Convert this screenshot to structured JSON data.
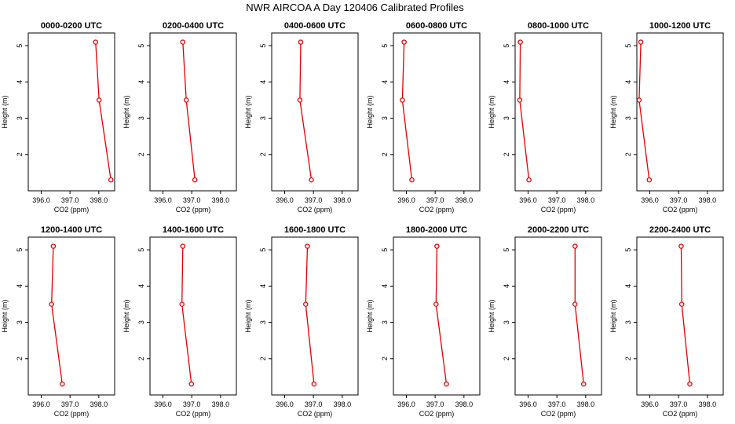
{
  "figure": {
    "title": "NWR AIRCOA A  Day 120406  Calibrated Profiles",
    "line_color": "#e00000",
    "marker_fill": "#ffffff"
  },
  "chart_data": [
    {
      "type": "line",
      "title": "0000-0200 UTC",
      "xlabel": "CO2 (ppm)",
      "ylabel": "Height (m)",
      "xlim": [
        395.55,
        398.55
      ],
      "ylim": [
        1.0,
        5.35
      ],
      "xticks": [
        "396.0",
        "397.0",
        "398.0"
      ],
      "yticks": [
        "2",
        "3",
        "4",
        "5"
      ],
      "x": [
        397.89,
        398.01,
        398.42
      ],
      "y": [
        5.1,
        3.5,
        1.3
      ]
    },
    {
      "type": "line",
      "title": "0200-0400 UTC",
      "xlabel": "CO2 (ppm)",
      "ylabel": "Height (m)",
      "xlim": [
        395.55,
        398.55
      ],
      "ylim": [
        1.0,
        5.35
      ],
      "xticks": [
        "396.0",
        "397.0",
        "398.0"
      ],
      "yticks": [
        "2",
        "3",
        "4",
        "5"
      ],
      "x": [
        396.69,
        396.81,
        397.11
      ],
      "y": [
        5.1,
        3.5,
        1.3
      ]
    },
    {
      "type": "line",
      "title": "0400-0600 UTC",
      "xlabel": "CO2 (ppm)",
      "ylabel": "Height (m)",
      "xlim": [
        395.55,
        398.55
      ],
      "ylim": [
        1.0,
        5.35
      ],
      "xticks": [
        "396.0",
        "397.0",
        "398.0"
      ],
      "yticks": [
        "2",
        "3",
        "4",
        "5"
      ],
      "x": [
        396.56,
        396.53,
        396.93
      ],
      "y": [
        5.1,
        3.5,
        1.3
      ]
    },
    {
      "type": "line",
      "title": "0600-0800 UTC",
      "xlabel": "CO2 (ppm)",
      "ylabel": "Height (m)",
      "xlim": [
        395.55,
        398.55
      ],
      "ylim": [
        1.0,
        5.35
      ],
      "xticks": [
        "396.0",
        "397.0",
        "398.0"
      ],
      "yticks": [
        "2",
        "3",
        "4",
        "5"
      ],
      "x": [
        395.92,
        395.86,
        396.19
      ],
      "y": [
        5.1,
        3.5,
        1.3
      ]
    },
    {
      "type": "line",
      "title": "0800-1000 UTC",
      "xlabel": "CO2 (ppm)",
      "ylabel": "Height (m)",
      "xlim": [
        395.55,
        398.55
      ],
      "ylim": [
        1.0,
        5.35
      ],
      "xticks": [
        "396.0",
        "397.0",
        "398.0"
      ],
      "yticks": [
        "2",
        "3",
        "4",
        "5"
      ],
      "x": [
        395.73,
        395.71,
        396.03
      ],
      "y": [
        5.1,
        3.5,
        1.3
      ]
    },
    {
      "type": "line",
      "title": "1000-1200 UTC",
      "xlabel": "CO2 (ppm)",
      "ylabel": "Height (m)",
      "xlim": [
        395.55,
        398.55
      ],
      "ylim": [
        1.0,
        5.35
      ],
      "xticks": [
        "396.0",
        "397.0",
        "398.0"
      ],
      "yticks": [
        "2",
        "3",
        "4",
        "5"
      ],
      "x": [
        395.69,
        395.63,
        395.98
      ],
      "y": [
        5.1,
        3.5,
        1.3
      ]
    },
    {
      "type": "line",
      "title": "1200-1400 UTC",
      "xlabel": "CO2 (ppm)",
      "ylabel": "Height (m)",
      "xlim": [
        395.55,
        398.55
      ],
      "ylim": [
        1.0,
        5.35
      ],
      "xticks": [
        "396.0",
        "397.0",
        "398.0"
      ],
      "yticks": [
        "2",
        "3",
        "4",
        "5"
      ],
      "x": [
        396.42,
        396.36,
        396.73
      ],
      "y": [
        5.1,
        3.5,
        1.3
      ]
    },
    {
      "type": "line",
      "title": "1400-1600 UTC",
      "xlabel": "CO2 (ppm)",
      "ylabel": "Height (m)",
      "xlim": [
        395.55,
        398.55
      ],
      "ylim": [
        1.0,
        5.35
      ],
      "xticks": [
        "396.0",
        "397.0",
        "398.0"
      ],
      "yticks": [
        "2",
        "3",
        "4",
        "5"
      ],
      "x": [
        396.69,
        396.66,
        396.99
      ],
      "y": [
        5.1,
        3.5,
        1.3
      ]
    },
    {
      "type": "line",
      "title": "1600-1800 UTC",
      "xlabel": "CO2 (ppm)",
      "ylabel": "Height (m)",
      "xlim": [
        395.55,
        398.55
      ],
      "ylim": [
        1.0,
        5.35
      ],
      "xticks": [
        "396.0",
        "397.0",
        "398.0"
      ],
      "yticks": [
        "2",
        "3",
        "4",
        "5"
      ],
      "x": [
        396.79,
        396.73,
        397.02
      ],
      "y": [
        5.1,
        3.5,
        1.3
      ]
    },
    {
      "type": "line",
      "title": "1800-2000 UTC",
      "xlabel": "CO2 (ppm)",
      "ylabel": "Height (m)",
      "xlim": [
        395.55,
        398.55
      ],
      "ylim": [
        1.0,
        5.35
      ],
      "xticks": [
        "396.0",
        "397.0",
        "398.0"
      ],
      "yticks": [
        "2",
        "3",
        "4",
        "5"
      ],
      "x": [
        397.06,
        397.03,
        397.39
      ],
      "y": [
        5.1,
        3.5,
        1.3
      ]
    },
    {
      "type": "line",
      "title": "2000-2200 UTC",
      "xlabel": "CO2 (ppm)",
      "ylabel": "Height (m)",
      "xlim": [
        395.55,
        398.55
      ],
      "ylim": [
        1.0,
        5.35
      ],
      "xticks": [
        "396.0",
        "397.0",
        "398.0"
      ],
      "yticks": [
        "2",
        "3",
        "4",
        "5"
      ],
      "x": [
        397.63,
        397.63,
        397.93
      ],
      "y": [
        5.1,
        3.5,
        1.3
      ]
    },
    {
      "type": "line",
      "title": "2200-2400 UTC",
      "xlabel": "CO2 (ppm)",
      "ylabel": "Height (m)",
      "xlim": [
        395.55,
        398.55
      ],
      "ylim": [
        1.0,
        5.35
      ],
      "xticks": [
        "396.0",
        "397.0",
        "398.0"
      ],
      "yticks": [
        "2",
        "3",
        "4",
        "5"
      ],
      "x": [
        397.09,
        397.11,
        397.39
      ],
      "y": [
        5.1,
        3.5,
        1.3
      ]
    }
  ]
}
